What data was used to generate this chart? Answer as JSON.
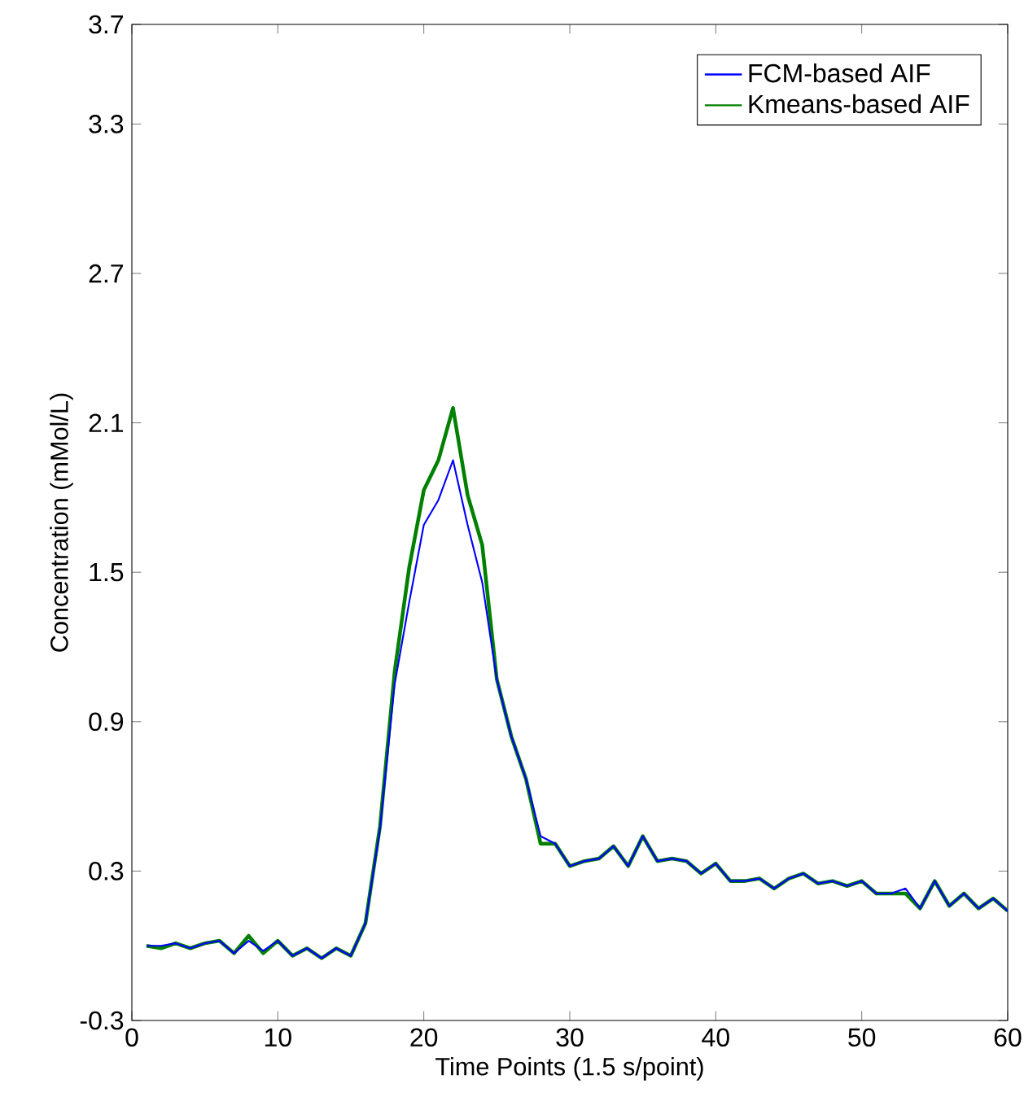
{
  "chart_data": {
    "type": "line",
    "xlabel": "Time Points (1.5 s/point)",
    "ylabel": "Concentration (mMol/L)",
    "x": [
      1,
      2,
      3,
      4,
      5,
      6,
      7,
      8,
      9,
      10,
      11,
      12,
      13,
      14,
      15,
      16,
      17,
      18,
      19,
      20,
      21,
      22,
      23,
      24,
      25,
      26,
      27,
      28,
      29,
      30,
      31,
      32,
      33,
      34,
      35,
      36,
      37,
      38,
      39,
      40,
      41,
      42,
      43,
      44,
      45,
      46,
      47,
      48,
      49,
      50,
      51,
      52,
      53,
      54,
      55,
      56,
      57,
      58,
      59,
      60
    ],
    "series": [
      {
        "name": "FCM-based AIF",
        "color": "#0000ff",
        "values": [
          0.0,
          0.0,
          0.01,
          -0.01,
          0.01,
          0.02,
          -0.03,
          0.02,
          -0.02,
          0.02,
          -0.04,
          -0.01,
          -0.05,
          -0.01,
          -0.04,
          0.09,
          0.47,
          1.05,
          1.38,
          1.69,
          1.79,
          1.95,
          1.69,
          1.46,
          1.07,
          0.84,
          0.67,
          0.44,
          0.41,
          0.32,
          0.34,
          0.35,
          0.4,
          0.32,
          0.44,
          0.34,
          0.35,
          0.34,
          0.29,
          0.33,
          0.26,
          0.26,
          0.27,
          0.23,
          0.27,
          0.29,
          0.25,
          0.26,
          0.24,
          0.26,
          0.21,
          0.21,
          0.23,
          0.15,
          0.26,
          0.16,
          0.21,
          0.15,
          0.19,
          0.14
        ]
      },
      {
        "name": "Kmeans-based AIF",
        "color": "#008000",
        "values": [
          0.0,
          -0.01,
          0.01,
          -0.01,
          0.01,
          0.02,
          -0.03,
          0.04,
          -0.03,
          0.02,
          -0.04,
          -0.01,
          -0.05,
          -0.01,
          -0.04,
          0.09,
          0.48,
          1.1,
          1.52,
          1.83,
          1.95,
          2.16,
          1.81,
          1.61,
          1.07,
          0.84,
          0.67,
          0.41,
          0.41,
          0.32,
          0.34,
          0.35,
          0.4,
          0.32,
          0.44,
          0.34,
          0.35,
          0.34,
          0.29,
          0.33,
          0.26,
          0.26,
          0.27,
          0.23,
          0.27,
          0.29,
          0.25,
          0.26,
          0.24,
          0.26,
          0.21,
          0.21,
          0.21,
          0.15,
          0.26,
          0.16,
          0.21,
          0.15,
          0.19,
          0.14
        ]
      }
    ],
    "xlim": [
      0,
      60
    ],
    "xticks": [
      0,
      10,
      20,
      30,
      40,
      50,
      60
    ],
    "ylim": [
      -0.3,
      3.7
    ],
    "yticks": [
      -0.3,
      0.3,
      0.9,
      1.5,
      2.1,
      2.7,
      3.3,
      3.7
    ],
    "legend": "top right",
    "grid": false,
    "line_style": "solid"
  }
}
